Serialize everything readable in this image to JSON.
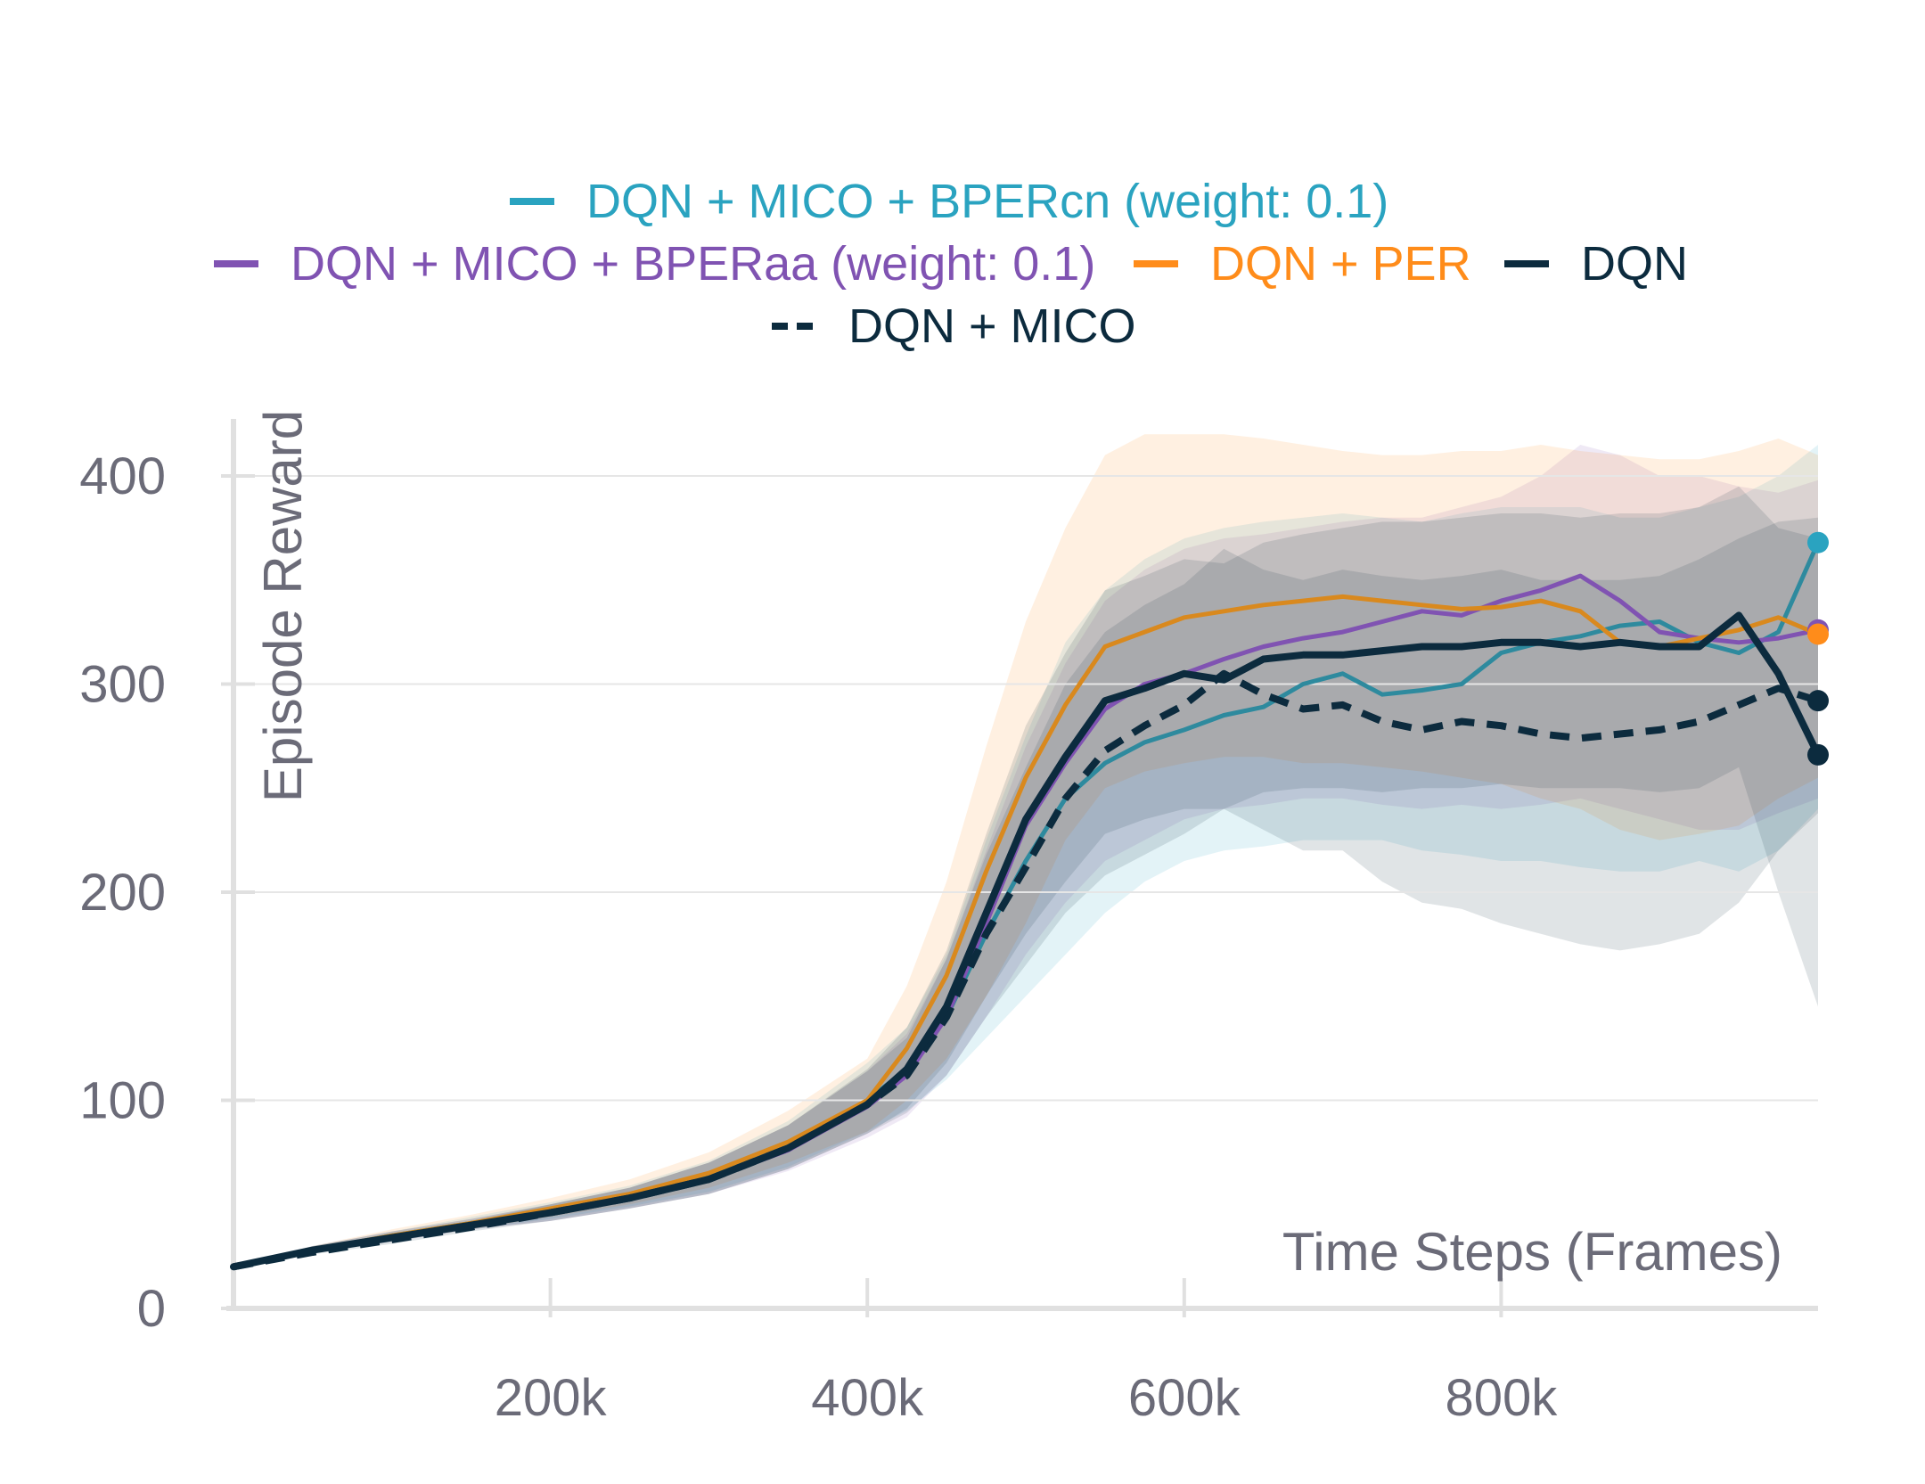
{
  "colors": {
    "bpercn": "#2aa3c0",
    "bpercn_line": "#2e8a9e",
    "bperaa": "#8053b2",
    "per": "#ff8c1a",
    "per_line": "#d9891e",
    "dqn": "#0c2b3e",
    "dqn_mico": "#0c2b3e",
    "grid": "#e6e6e6",
    "axis": "#e0e0e0",
    "text": "#6b6b78"
  },
  "chart_data": {
    "type": "line",
    "xlabel": "Time Steps (Frames)",
    "ylabel": "Episode Reward",
    "xlim": [
      0,
      1000000
    ],
    "ylim": [
      0,
      430
    ],
    "x_ticks": [
      200000,
      400000,
      600000,
      800000
    ],
    "x_tick_labels": [
      "200k",
      "400k",
      "600k",
      "800k"
    ],
    "y_ticks": [
      0,
      100,
      200,
      300,
      400
    ],
    "y_tick_labels": [
      "0",
      "100",
      "200",
      "300",
      "400"
    ],
    "grid": true,
    "legend_position": "top",
    "legend": [
      {
        "label": "DQN + MICO + BPERcn (weight: 0.1)",
        "key": "bpercn",
        "dash": false
      },
      {
        "label": "DQN + MICO + BPERaa (weight: 0.1)",
        "key": "bperaa",
        "dash": false
      },
      {
        "label": "DQN + PER",
        "key": "per",
        "dash": false
      },
      {
        "label": "DQN",
        "key": "dqn",
        "dash": false
      },
      {
        "label": "DQN + MICO",
        "key": "dqn_mico",
        "dash": true
      }
    ],
    "x": [
      0,
      50000,
      100000,
      150000,
      200000,
      250000,
      300000,
      350000,
      400000,
      425000,
      450000,
      475000,
      500000,
      525000,
      550000,
      575000,
      600000,
      625000,
      650000,
      675000,
      700000,
      725000,
      750000,
      775000,
      800000,
      825000,
      850000,
      875000,
      900000,
      925000,
      950000,
      975000,
      1000000
    ],
    "series": [
      {
        "name": "DQN + MICO + BPERcn (weight: 0.1)",
        "key": "bpercn",
        "line_key": "bpercn_line",
        "dash": false,
        "marker": true,
        "values": [
          20,
          28,
          35,
          41,
          47,
          54,
          63,
          78,
          100,
          115,
          140,
          180,
          215,
          245,
          262,
          272,
          278,
          285,
          289,
          300,
          305,
          295,
          297,
          300,
          315,
          320,
          323,
          328,
          330,
          320,
          315,
          325,
          368
        ],
        "band": [
          [
            20,
            20
          ],
          [
            27,
            30
          ],
          [
            33,
            37
          ],
          [
            38,
            44
          ],
          [
            43,
            51
          ],
          [
            49,
            59
          ],
          [
            56,
            71
          ],
          [
            68,
            90
          ],
          [
            85,
            118
          ],
          [
            95,
            135
          ],
          [
            110,
            170
          ],
          [
            130,
            225
          ],
          [
            150,
            275
          ],
          [
            170,
            320
          ],
          [
            190,
            345
          ],
          [
            205,
            360
          ],
          [
            215,
            370
          ],
          [
            220,
            375
          ],
          [
            222,
            378
          ],
          [
            225,
            380
          ],
          [
            225,
            382
          ],
          [
            225,
            380
          ],
          [
            220,
            378
          ],
          [
            218,
            382
          ],
          [
            215,
            385
          ],
          [
            215,
            385
          ],
          [
            212,
            385
          ],
          [
            210,
            380
          ],
          [
            210,
            380
          ],
          [
            215,
            385
          ],
          [
            210,
            390
          ],
          [
            220,
            400
          ],
          [
            240,
            415
          ]
        ]
      },
      {
        "name": "DQN + MICO + BPERaa (weight: 0.1)",
        "key": "bperaa",
        "line_key": "bperaa",
        "dash": false,
        "marker": true,
        "values": [
          20,
          28,
          34,
          40,
          46,
          53,
          62,
          76,
          97,
          112,
          140,
          185,
          232,
          262,
          288,
          300,
          305,
          312,
          318,
          322,
          325,
          330,
          335,
          333,
          340,
          345,
          352,
          340,
          325,
          322,
          320,
          322,
          326
        ],
        "band": [
          [
            20,
            20
          ],
          [
            27,
            30
          ],
          [
            32,
            37
          ],
          [
            38,
            43
          ],
          [
            42,
            50
          ],
          [
            48,
            58
          ],
          [
            55,
            70
          ],
          [
            66,
            88
          ],
          [
            82,
            114
          ],
          [
            92,
            132
          ],
          [
            112,
            168
          ],
          [
            140,
            220
          ],
          [
            170,
            270
          ],
          [
            195,
            310
          ],
          [
            215,
            340
          ],
          [
            225,
            355
          ],
          [
            235,
            365
          ],
          [
            240,
            370
          ],
          [
            242,
            372
          ],
          [
            245,
            375
          ],
          [
            245,
            378
          ],
          [
            242,
            380
          ],
          [
            240,
            380
          ],
          [
            242,
            385
          ],
          [
            240,
            390
          ],
          [
            242,
            400
          ],
          [
            245,
            415
          ],
          [
            240,
            410
          ],
          [
            235,
            400
          ],
          [
            230,
            400
          ],
          [
            230,
            395
          ],
          [
            238,
            392
          ],
          [
            245,
            398
          ]
        ]
      },
      {
        "name": "DQN + PER",
        "key": "per",
        "line_key": "per_line",
        "dash": false,
        "marker": true,
        "values": [
          20,
          28,
          35,
          41,
          48,
          55,
          65,
          80,
          100,
          125,
          160,
          210,
          255,
          290,
          318,
          325,
          332,
          335,
          338,
          340,
          342,
          340,
          338,
          336,
          337,
          340,
          335,
          320,
          318,
          322,
          326,
          332,
          324
        ],
        "band": [
          [
            20,
            20
          ],
          [
            27,
            30
          ],
          [
            33,
            38
          ],
          [
            38,
            45
          ],
          [
            44,
            53
          ],
          [
            50,
            62
          ],
          [
            58,
            75
          ],
          [
            70,
            95
          ],
          [
            85,
            120
          ],
          [
            100,
            155
          ],
          [
            120,
            205
          ],
          [
            150,
            270
          ],
          [
            185,
            330
          ],
          [
            225,
            375
          ],
          [
            250,
            410
          ],
          [
            258,
            420
          ],
          [
            262,
            420
          ],
          [
            265,
            420
          ],
          [
            265,
            418
          ],
          [
            262,
            415
          ],
          [
            262,
            412
          ],
          [
            260,
            410
          ],
          [
            258,
            410
          ],
          [
            255,
            412
          ],
          [
            252,
            412
          ],
          [
            245,
            415
          ],
          [
            240,
            412
          ],
          [
            230,
            410
          ],
          [
            225,
            408
          ],
          [
            228,
            408
          ],
          [
            232,
            412
          ],
          [
            245,
            418
          ],
          [
            255,
            410
          ]
        ]
      },
      {
        "name": "DQN",
        "key": "dqn",
        "line_key": "dqn",
        "dash": false,
        "marker": true,
        "values": [
          20,
          28,
          34,
          40,
          46,
          53,
          62,
          77,
          98,
          115,
          145,
          190,
          235,
          265,
          292,
          298,
          305,
          302,
          312,
          314,
          314,
          316,
          318,
          318,
          320,
          320,
          318,
          320,
          318,
          318,
          333,
          305,
          266
        ],
        "band": [
          [
            20,
            20
          ],
          [
            27,
            30
          ],
          [
            32,
            37
          ],
          [
            38,
            43
          ],
          [
            42,
            50
          ],
          [
            48,
            58
          ],
          [
            55,
            70
          ],
          [
            67,
            88
          ],
          [
            84,
            115
          ],
          [
            96,
            135
          ],
          [
            118,
            172
          ],
          [
            150,
            228
          ],
          [
            180,
            280
          ],
          [
            205,
            315
          ],
          [
            228,
            345
          ],
          [
            235,
            352
          ],
          [
            240,
            360
          ],
          [
            240,
            358
          ],
          [
            248,
            368
          ],
          [
            250,
            372
          ],
          [
            250,
            375
          ],
          [
            248,
            378
          ],
          [
            250,
            378
          ],
          [
            250,
            380
          ],
          [
            252,
            382
          ],
          [
            250,
            382
          ],
          [
            250,
            380
          ],
          [
            250,
            382
          ],
          [
            248,
            382
          ],
          [
            250,
            385
          ],
          [
            260,
            395
          ],
          [
            200,
            375
          ],
          [
            145,
            370
          ]
        ]
      },
      {
        "name": "DQN + MICO",
        "key": "dqn_mico",
        "line_key": "dqn_mico",
        "dash": true,
        "marker": true,
        "values": [
          20,
          27,
          33,
          39,
          46,
          53,
          62,
          77,
          98,
          112,
          140,
          180,
          212,
          245,
          268,
          280,
          290,
          305,
          295,
          288,
          290,
          282,
          278,
          282,
          280,
          276,
          274,
          276,
          278,
          282,
          290,
          298,
          292
        ],
        "band": [
          [
            20,
            20
          ],
          [
            26,
            29
          ],
          [
            31,
            36
          ],
          [
            37,
            42
          ],
          [
            42,
            50
          ],
          [
            48,
            58
          ],
          [
            55,
            70
          ],
          [
            67,
            88
          ],
          [
            84,
            114
          ],
          [
            94,
            130
          ],
          [
            112,
            168
          ],
          [
            140,
            218
          ],
          [
            165,
            260
          ],
          [
            190,
            300
          ],
          [
            208,
            325
          ],
          [
            218,
            338
          ],
          [
            228,
            348
          ],
          [
            240,
            365
          ],
          [
            230,
            355
          ],
          [
            220,
            350
          ],
          [
            220,
            355
          ],
          [
            205,
            352
          ],
          [
            195,
            350
          ],
          [
            192,
            352
          ],
          [
            185,
            355
          ],
          [
            180,
            350
          ],
          [
            175,
            350
          ],
          [
            172,
            350
          ],
          [
            175,
            352
          ],
          [
            180,
            360
          ],
          [
            195,
            370
          ],
          [
            220,
            378
          ],
          [
            238,
            380
          ]
        ]
      }
    ]
  }
}
